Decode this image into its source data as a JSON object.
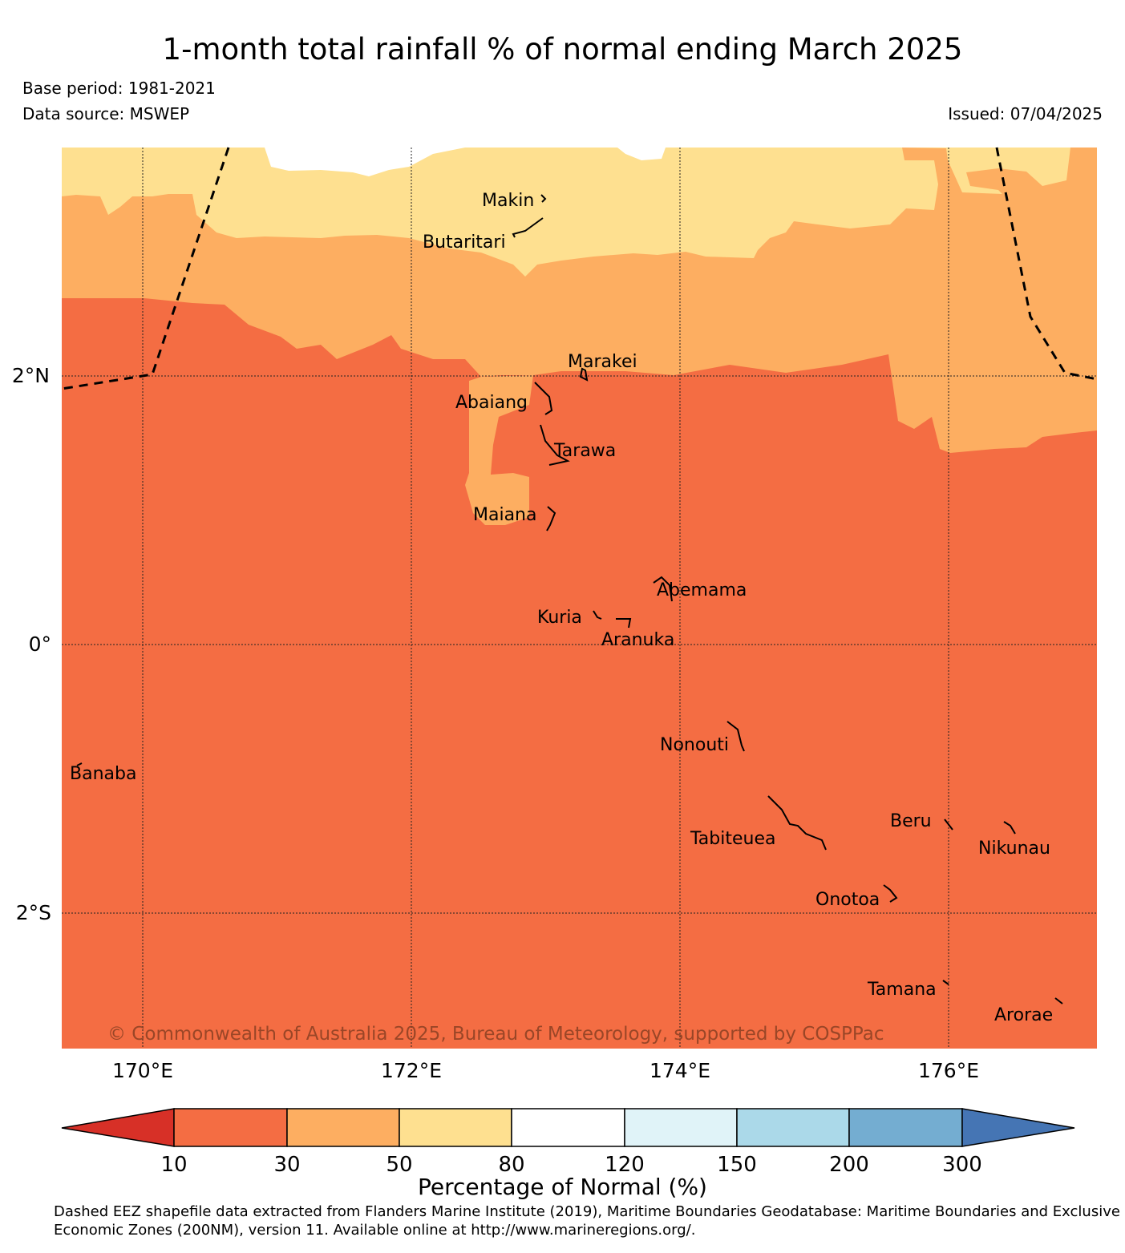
{
  "title": "1-month total rainfall % of normal ending March 2025",
  "base_period": "Base period: 1981-2021",
  "data_source": "Data source: MSWEP",
  "issued": "Issued: 07/04/2025",
  "copyright": "© Commonwealth of Australia 2025, Bureau of Meteorology, supported by COSPPac",
  "lat_labels": [
    "2°N",
    "0°",
    "2°S"
  ],
  "lon_labels": [
    "170°E",
    "172°E",
    "174°E",
    "176°E"
  ],
  "islands": [
    "Makin",
    "Butaritari",
    "Marakei",
    "Abaiang",
    "Tarawa",
    "Maiana",
    "Abemama",
    "Kuria",
    "Aranuka",
    "Nonouti",
    "Banaba",
    "Beru",
    "Tabiteuea",
    "Nikunau",
    "Onotoa",
    "Tamana",
    "Arorae"
  ],
  "colorbar": {
    "title": "Percentage of Normal (%)",
    "ticks": [
      "10",
      "30",
      "50",
      "80",
      "120",
      "150",
      "200",
      "300"
    ],
    "colors": [
      "#d73027",
      "#f46d43",
      "#fdae61",
      "#fee090",
      "#ffffff",
      "#e0f3f8",
      "#abd9e9",
      "#74add1",
      "#4575b4"
    ]
  },
  "footnote": "Dashed EEZ shapefile data extracted from Flanders Marine Institute (2019), Maritime Boundaries Geodatabase: Maritime Boundaries and Exclusive Economic Zones (200NM), version 11. Available online at http://www.marineregions.org/."
}
